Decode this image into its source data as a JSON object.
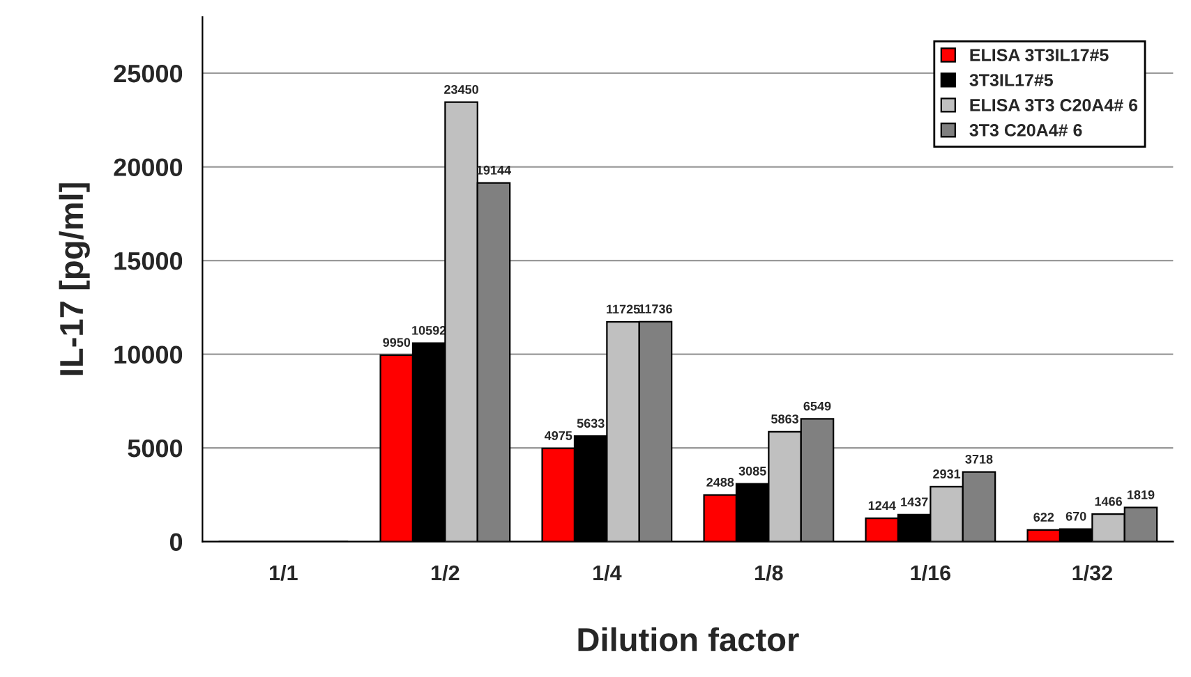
{
  "chart_data": {
    "type": "bar",
    "xlabel": "Dilution factor",
    "ylabel": "IL-17 [pg/ml]",
    "categories": [
      "1/1",
      "1/2",
      "1/4",
      "1/8",
      "1/16",
      "1/32"
    ],
    "series": [
      {
        "name": "ELISA 3T3IL17#5",
        "color": "#ff0000",
        "values": [
          0,
          9950,
          4975,
          2488,
          1244,
          622
        ],
        "value_labels": [
          null,
          "9950",
          "4975",
          "2488",
          "1244",
          "622"
        ]
      },
      {
        "name": "3T3IL17#5",
        "color": "#000000",
        "values": [
          0,
          10592,
          5633,
          3085,
          1437,
          670
        ],
        "value_labels": [
          null,
          "10592",
          "5633",
          "3085",
          "1437",
          "670"
        ]
      },
      {
        "name": "ELISA 3T3 C20A4# 6",
        "color": "#c0c0c0",
        "values": [
          0,
          23450,
          11725,
          5863,
          2931,
          1466
        ],
        "value_labels": [
          null,
          "23450",
          "11725",
          "5863",
          "2931",
          "1466"
        ]
      },
      {
        "name": "3T3 C20A4# 6",
        "color": "#808080",
        "values": [
          0,
          19144,
          11736,
          6549,
          3718,
          1819
        ],
        "value_labels": [
          null,
          "19144",
          "11736",
          "6549",
          "3718",
          "1819"
        ]
      }
    ],
    "ylim": [
      0,
      28000
    ],
    "yticks": [
      0,
      5000,
      10000,
      15000,
      20000,
      25000
    ],
    "grid": "y",
    "legend": "top right"
  }
}
